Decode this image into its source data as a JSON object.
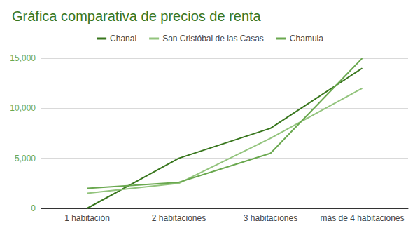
{
  "chart_data": {
    "type": "line",
    "title": "Gráfica comparativa de precios de renta",
    "categories": [
      "1 habitación",
      "2 habitaciones",
      "3 habitaciones",
      "más de 4 habitaciones"
    ],
    "series": [
      {
        "name": "Chanal",
        "color": "#38761d",
        "values": [
          0,
          5000,
          8000,
          14000
        ]
      },
      {
        "name": "San Cristóbal de las Casas",
        "color": "#93c47d",
        "values": [
          1500,
          2500,
          7000,
          12000
        ]
      },
      {
        "name": "Chamula",
        "color": "#6aa84f",
        "values": [
          2000,
          2600,
          5500,
          15000
        ]
      }
    ],
    "ylim": [
      0,
      15000
    ],
    "yticks": [
      0,
      5000,
      10000,
      15000
    ],
    "grid": true,
    "legend": "top",
    "marker": "none"
  }
}
